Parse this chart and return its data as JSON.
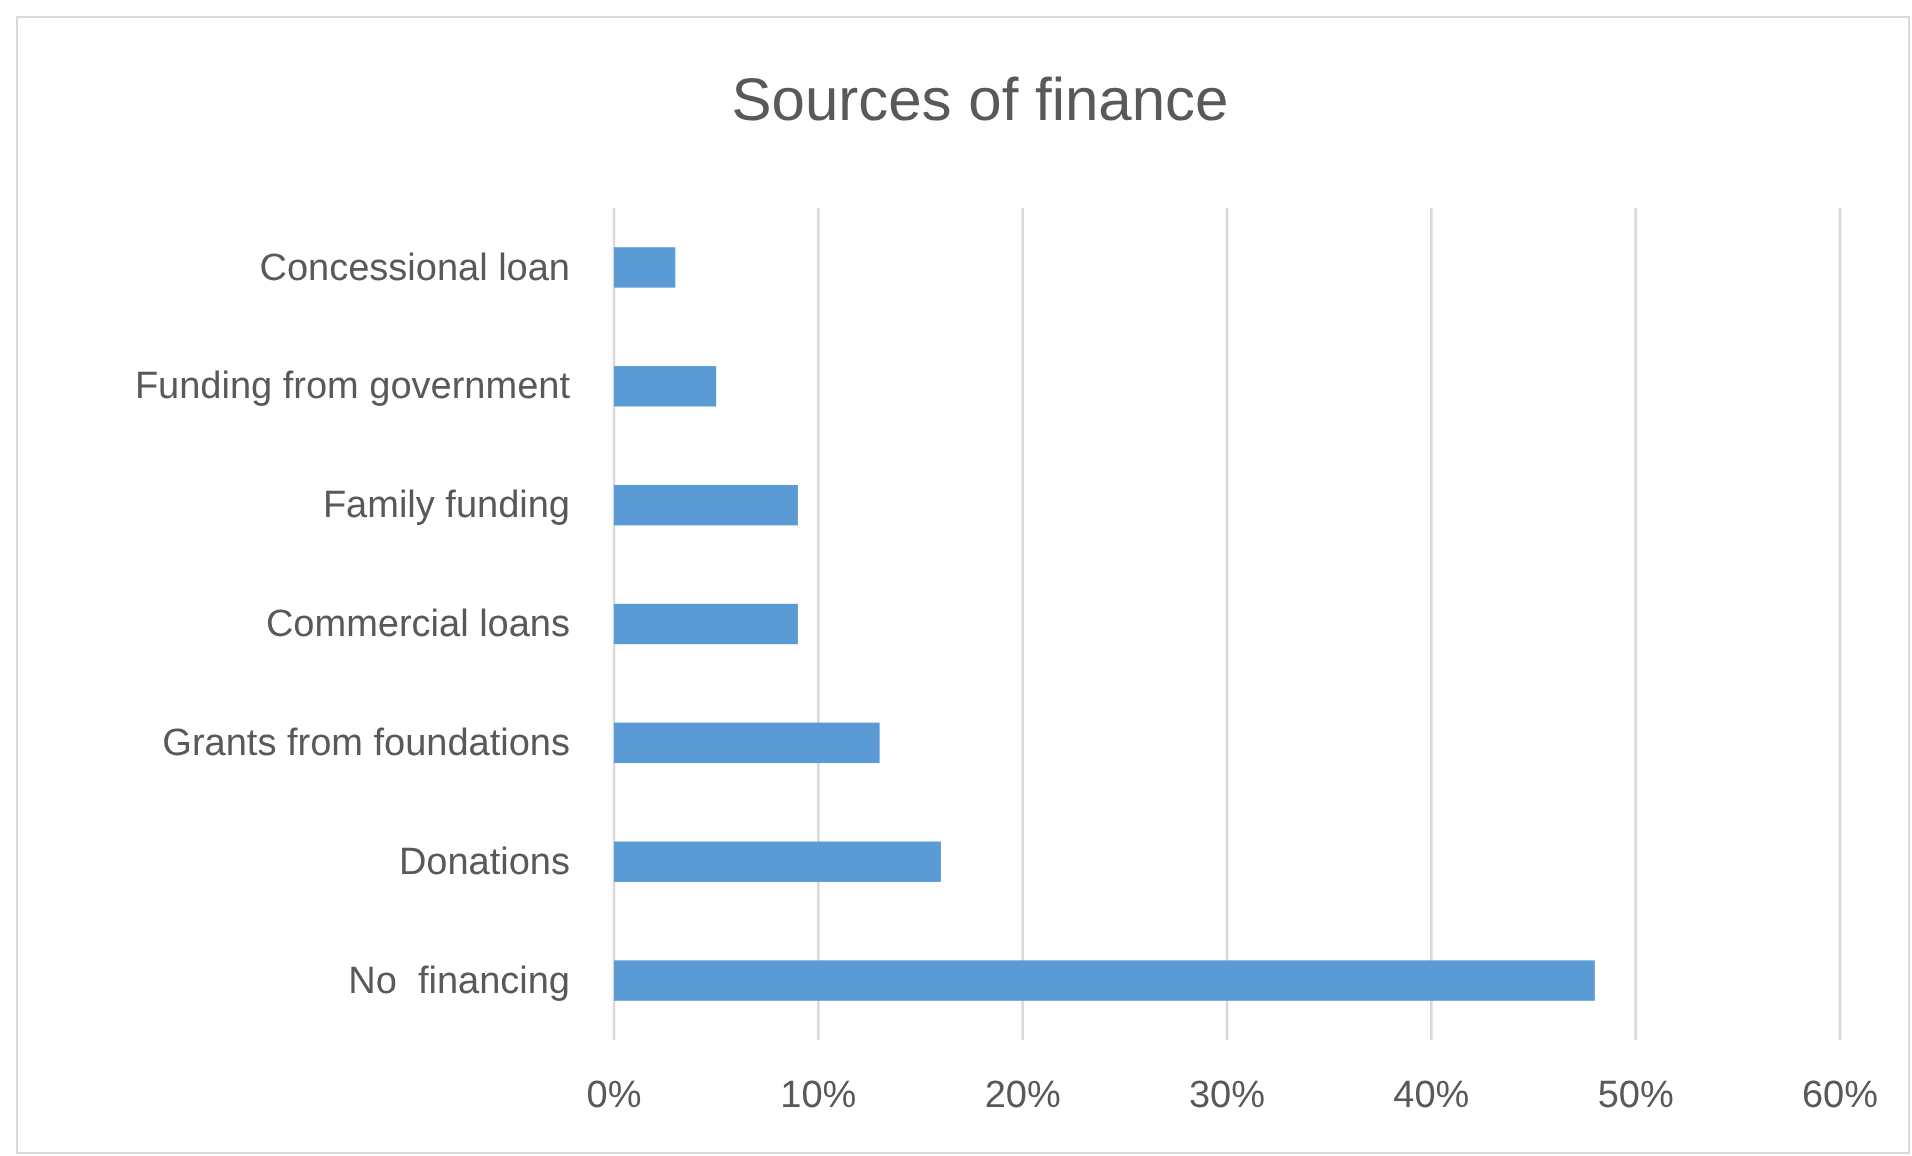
{
  "chart_data": {
    "type": "bar",
    "title": "Sources of finance",
    "orientation": "horizontal",
    "categories": [
      "Concessional loan",
      "Funding from government",
      "Family funding",
      "Commercial loans",
      "Grants from foundations",
      "Donations",
      "No  financing"
    ],
    "values": [
      3,
      5,
      9,
      9,
      13,
      16,
      48
    ],
    "color": "#5b9bd5",
    "xlim": [
      0,
      60
    ],
    "xticks": [
      {
        "value": 0,
        "label": "0%"
      },
      {
        "value": 10,
        "label": "10%"
      },
      {
        "value": 20,
        "label": "20%"
      },
      {
        "value": 30,
        "label": "30%"
      },
      {
        "value": 40,
        "label": "40%"
      },
      {
        "value": 50,
        "label": "50%"
      },
      {
        "value": 60,
        "label": "60%"
      }
    ],
    "grid": "x"
  }
}
